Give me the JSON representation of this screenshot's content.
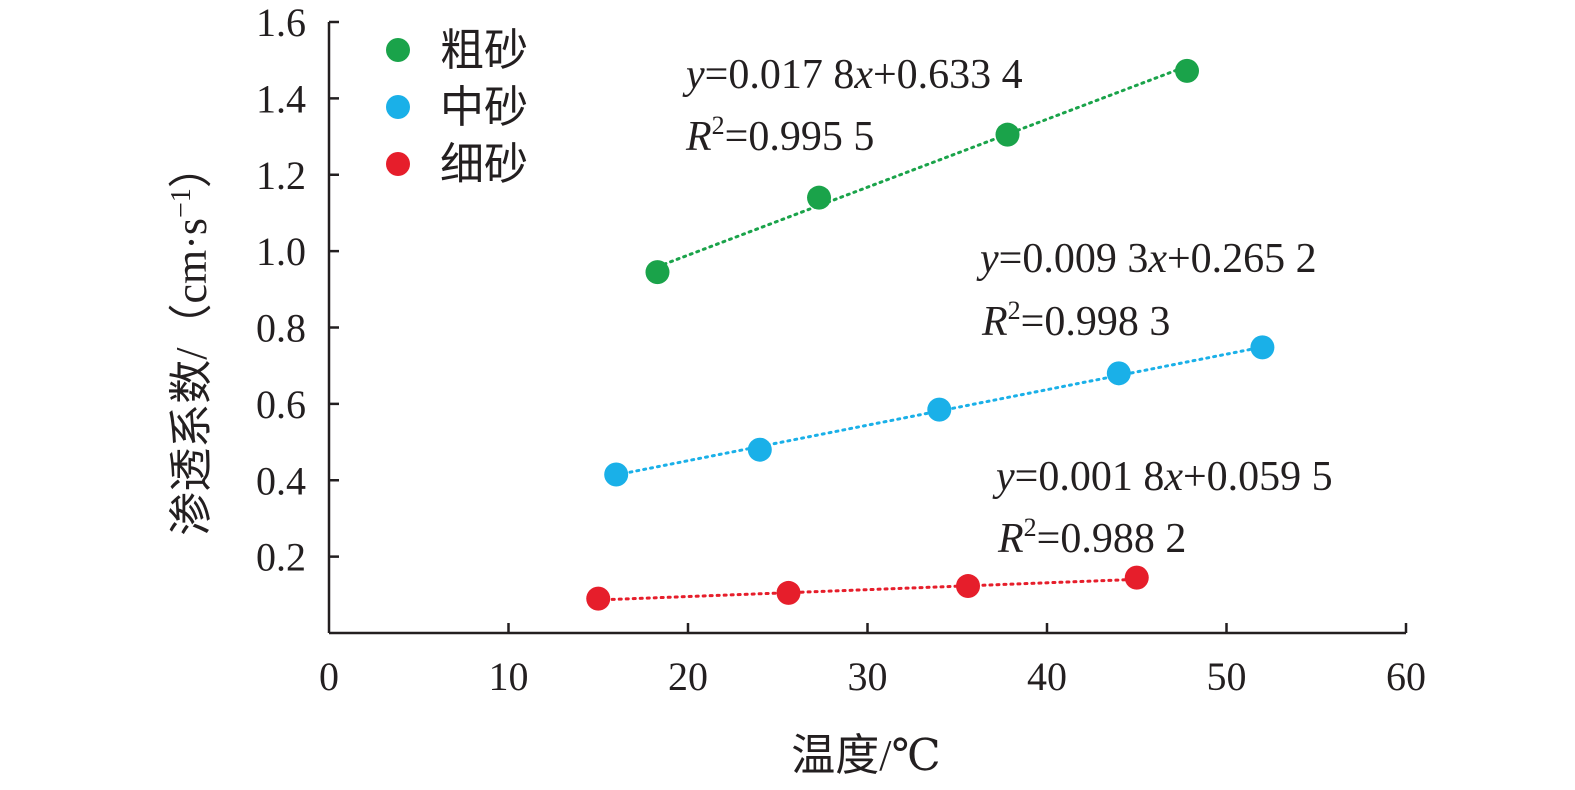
{
  "chart_data": {
    "type": "scatter",
    "xlabel": "温度/℃",
    "ylabel": "渗透系数/（cm·s",
    "ylabel_sup": "−1",
    "ylabel_close": "）",
    "xlim": [
      0,
      60
    ],
    "ylim": [
      0,
      1.6
    ],
    "x_ticks": [
      "0",
      "10",
      "20",
      "30",
      "40",
      "50",
      "60"
    ],
    "y_ticks": [
      "0.2",
      "0.4",
      "0.6",
      "0.8",
      "1.0",
      "1.2",
      "1.4",
      "1.6"
    ],
    "grid": false,
    "legend_position": "top-left",
    "series": [
      {
        "name": "粗砂",
        "color": "#1aa34a",
        "x": [
          18.3,
          27.3,
          37.8,
          47.8
        ],
        "y": [
          0.945,
          1.14,
          1.305,
          1.472
        ],
        "fit": {
          "slope": 0.0178,
          "intercept": 0.6334
        },
        "equation": {
          "y_var": "y",
          "eq_part1": "=0.017 8",
          "x_var": "x",
          "eq_part2": "+0.633 4",
          "r_var": "R",
          "r_sup": "2",
          "r_value": "=0.995 5"
        }
      },
      {
        "name": "中砂",
        "color": "#1ab0e8",
        "x": [
          16.0,
          24.0,
          34.0,
          44.0,
          52.0
        ],
        "y": [
          0.415,
          0.48,
          0.585,
          0.68,
          0.748
        ],
        "fit": {
          "slope": 0.0093,
          "intercept": 0.2652
        },
        "equation": {
          "y_var": "y",
          "eq_part1": "=0.009 3",
          "x_var": "x",
          "eq_part2": "+0.265 2",
          "r_var": "R",
          "r_sup": "2",
          "r_value": "=0.998 3"
        }
      },
      {
        "name": "细砂",
        "color": "#e61e2b",
        "x": [
          15.0,
          25.6,
          35.6,
          45.0
        ],
        "y": [
          0.09,
          0.105,
          0.123,
          0.145
        ],
        "fit": {
          "slope": 0.0018,
          "intercept": 0.0595
        },
        "equation": {
          "y_var": "y",
          "eq_part1": "=0.001 8",
          "x_var": "x",
          "eq_part2": "+0.059 5",
          "r_var": "R",
          "r_sup": "2",
          "r_value": "=0.988 2"
        }
      }
    ]
  }
}
